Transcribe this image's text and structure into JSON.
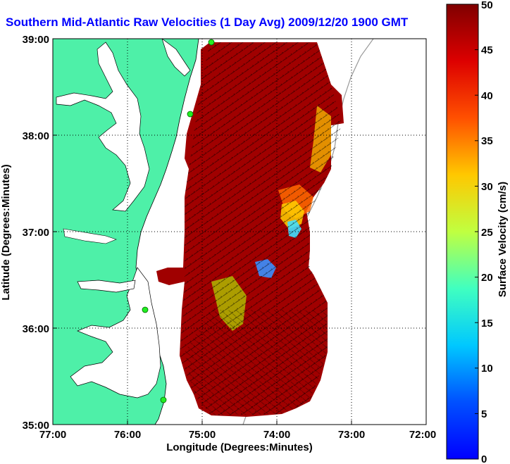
{
  "title": "Southern Mid-Atlantic Raw Velocities (1 Day Avg) 2009/12/20 1900 GMT",
  "x_axis": {
    "label": "Longitude (Degrees:Minutes)",
    "ticks": [
      "77:00",
      "76:00",
      "75:00",
      "74:00",
      "73:00",
      "72:00"
    ]
  },
  "y_axis": {
    "label": "Latitude (Degrees:Minutes)",
    "ticks": [
      "39:00",
      "38:00",
      "37:00",
      "36:00",
      "35:00"
    ]
  },
  "colorbar": {
    "label": "Surface Velocity (cm/s)",
    "ticks": [
      "50",
      "45",
      "40",
      "35",
      "30",
      "25",
      "20",
      "15",
      "10",
      "5",
      "0"
    ],
    "range": [
      0,
      50
    ],
    "colormap": "jet"
  },
  "colors": {
    "land": "#4ef0a8",
    "water": "#ffffff",
    "field_dark": "#8a0000",
    "field_mid": "#cc0000",
    "title": "#0000ff",
    "stations": "#22ee22"
  },
  "map": {
    "lon_range": [
      -77.0,
      -72.0
    ],
    "lat_range": [
      35.0,
      39.0
    ],
    "grid": "dotted"
  }
}
